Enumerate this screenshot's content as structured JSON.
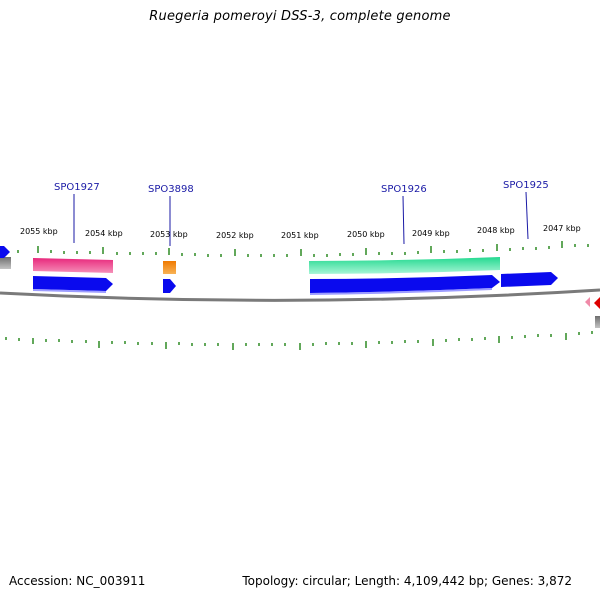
{
  "title": "Ruegeria pomeroyi DSS-3, complete genome",
  "footer": {
    "accession": "Accession: NC_003911",
    "stats": "Topology: circular; Length: 4,109,442 bp; Genes: 3,872"
  },
  "colors": {
    "tick": "#2e8b22",
    "backbone": "#7a7a7a",
    "cds_blue": "#0a0aee",
    "gene_magenta": "#e8287c",
    "gene_orange": "#f28a0c",
    "gene_green": "#2ee8a0",
    "label_blue": "#1a1aa6",
    "marker_red": "#dd0000",
    "marker_pink": "#f08aa8",
    "grey_block": "#8a8a8a"
  },
  "tick_labels": [
    "2055 kbp",
    "2054 kbp",
    "2053 kbp",
    "2052 kbp",
    "2051 kbp",
    "2050 kbp",
    "2049 kbp",
    "2048 kbp",
    "2047 kbp"
  ],
  "gene_labels": [
    "SPO1927",
    "SPO3898",
    "SPO1926",
    "SPO1925"
  ]
}
